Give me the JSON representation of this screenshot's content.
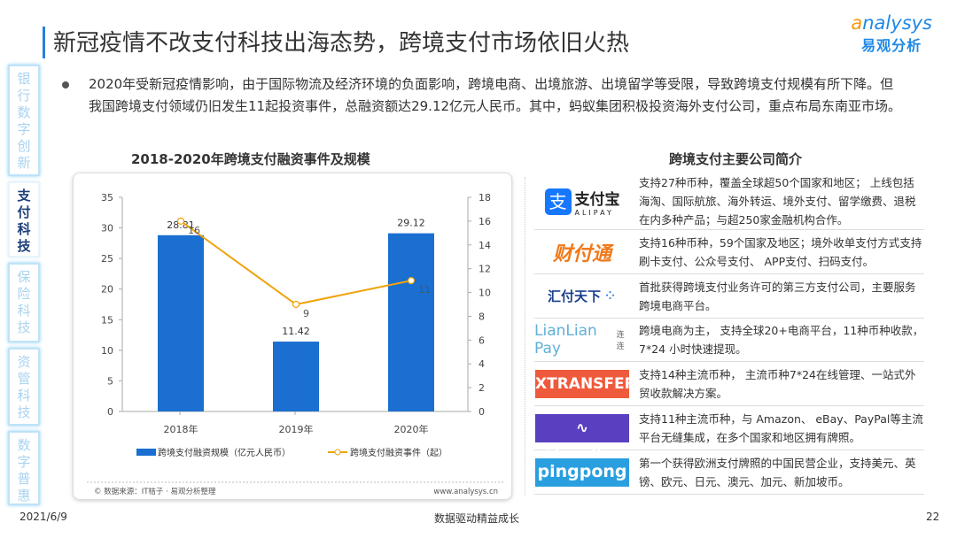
{
  "header": {
    "title": "新冠疫情不改支付科技出海态势，跨境支付市场依旧火热",
    "logo_en": "nalysys",
    "logo_en_a": "a",
    "logo_cn": "易观分析"
  },
  "sidebar": {
    "tabs": [
      {
        "label": "银行数字创新",
        "active": false
      },
      {
        "label": "支付科技",
        "active": true
      },
      {
        "label": "保险科技",
        "active": false
      },
      {
        "label": "资管科技",
        "active": false
      },
      {
        "label": "数字普惠",
        "active": false
      }
    ]
  },
  "summary": "2020年受新冠疫情影响，由于国际物流及经济环境的负面影响，跨境电商、出境旅游、出境留学等受限，导致跨境支付规模有所下降。但我国跨境支付领域仍旧发生11起投资事件，总融资额达29.12亿元人民币。其中，蚂蚁集团积极投资海外支付公司，重点布局东南亚市场。",
  "chart_data": {
    "type": "bar+line",
    "title": "2018-2020年跨境支付融资事件及规模",
    "categories": [
      "2018年",
      "2019年",
      "2020年"
    ],
    "series": [
      {
        "name": "跨境支付融资规模（亿元人民币）",
        "type": "bar",
        "axis": "left",
        "values": [
          28.81,
          11.42,
          29.12
        ],
        "color": "#1a6fd0"
      },
      {
        "name": "跨境支付融资事件（起）",
        "type": "line",
        "axis": "right",
        "values": [
          16,
          9,
          11
        ],
        "color": "#f0a30a"
      }
    ],
    "left_axis": {
      "ylim": [
        0,
        35
      ],
      "ticks": [
        0,
        5,
        10,
        15,
        20,
        25,
        30,
        35
      ]
    },
    "right_axis": {
      "ylim": [
        0,
        18
      ],
      "ticks": [
        0,
        2,
        4,
        6,
        8,
        10,
        12,
        14,
        16,
        18
      ]
    },
    "grid": false,
    "legend": "bottom",
    "source": "© 数据来源：IT桔子 · 易观分析整理",
    "website": "www.analysys.cn"
  },
  "companies": {
    "title": "跨境支付主要公司简介",
    "items": [
      {
        "logo": "支付宝",
        "logo_sub": "ALIPAY",
        "text": "支持27种币种，覆盖全球超50个国家和地区； 上线包括海淘、国际航旅、海外转运、境外支付、留学缴费、退税在内多种产品；与超250家金融机构合作。"
      },
      {
        "logo": "财付通",
        "text": "支持16种币种，59个国家及地区；境外收单支付方式支持刷卡支付、公众号支付、 APP支付、扫码支付。"
      },
      {
        "logo": "汇付天下",
        "text": "首批获得跨境支付业务许可的第三方支付公司，主要服务跨境电商平台。"
      },
      {
        "logo": "LianLian Pay",
        "logo_sub": "连连",
        "text": "跨境电商为主， 支持全球20+电商平台，11种币种收款，7*24 小时快速提现。"
      },
      {
        "logo": "XTRANSFER",
        "text": "支持14种主流币种， 主流币种7*24在线管理、一站式外贸收款解决方案。"
      },
      {
        "logo": "Airwallex",
        "text": "支持11种主流币种，与 Amazon、 eBay、PayPal等主流平台无缝集成，在多个国家和地区拥有牌照。"
      },
      {
        "logo": "pingpong",
        "text": "第一个获得欧洲支付牌照的中国民营企业，支持美元、英镑、欧元、日元、澳元、加元、新加坡币。"
      }
    ]
  },
  "footer": {
    "date": "2021/6/9",
    "slogan": "数据驱动精益成长",
    "page": "22"
  }
}
